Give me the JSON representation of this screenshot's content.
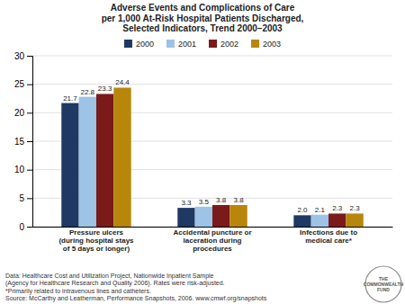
{
  "chart_data": {
    "type": "bar",
    "title": "Adverse Events and Complications of Care\nper 1,000 At-Risk Hospital Patients Discharged,\nSelected Indicators, Trend 2000–2003",
    "categories": [
      "Pressure ulcers\n(during hospital stays\nof 5 days or longer)",
      "Accidental puncture or\nlaceration during\nprocedures",
      "Infections due to\nmedical care*"
    ],
    "series": [
      {
        "name": "2000",
        "color": "#1f3864",
        "values": [
          21.7,
          3.3,
          2.0
        ],
        "value_labels": [
          "21.7",
          "3.3",
          "2.0"
        ]
      },
      {
        "name": "2001",
        "color": "#9dc3e6",
        "values": [
          22.8,
          3.5,
          2.1
        ],
        "value_labels": [
          "22.8",
          "3.5",
          "2.1"
        ]
      },
      {
        "name": "2002",
        "color": "#7b1a1a",
        "values": [
          23.3,
          3.8,
          2.3
        ],
        "value_labels": [
          "23.3",
          "3.8",
          "2.3"
        ]
      },
      {
        "name": "2003",
        "color": "#b8860b",
        "values": [
          24.4,
          3.8,
          2.3
        ],
        "value_labels": [
          "24.4",
          "3.8",
          "2.3"
        ]
      }
    ],
    "ylim": [
      0,
      30
    ],
    "yticks": [
      0,
      5,
      10,
      15,
      20,
      25,
      30
    ],
    "grid": true,
    "legend": "top",
    "data_labels": true,
    "annotations": [
      "Data: Healthcare Cost and Utilization Project, Nationwide Inpatient Sample",
      "(Agency for Healthcare Research and Quality 2006). Rates were risk-adjusted.",
      "*Primarily related to intravenous lines and catheters.",
      "Source: McCarthy and Leatherman, Performance Snapshots, 2006. www.cmwf.org/snapshots",
      "THE\nCOMMONWEALTH\nFUND"
    ]
  }
}
